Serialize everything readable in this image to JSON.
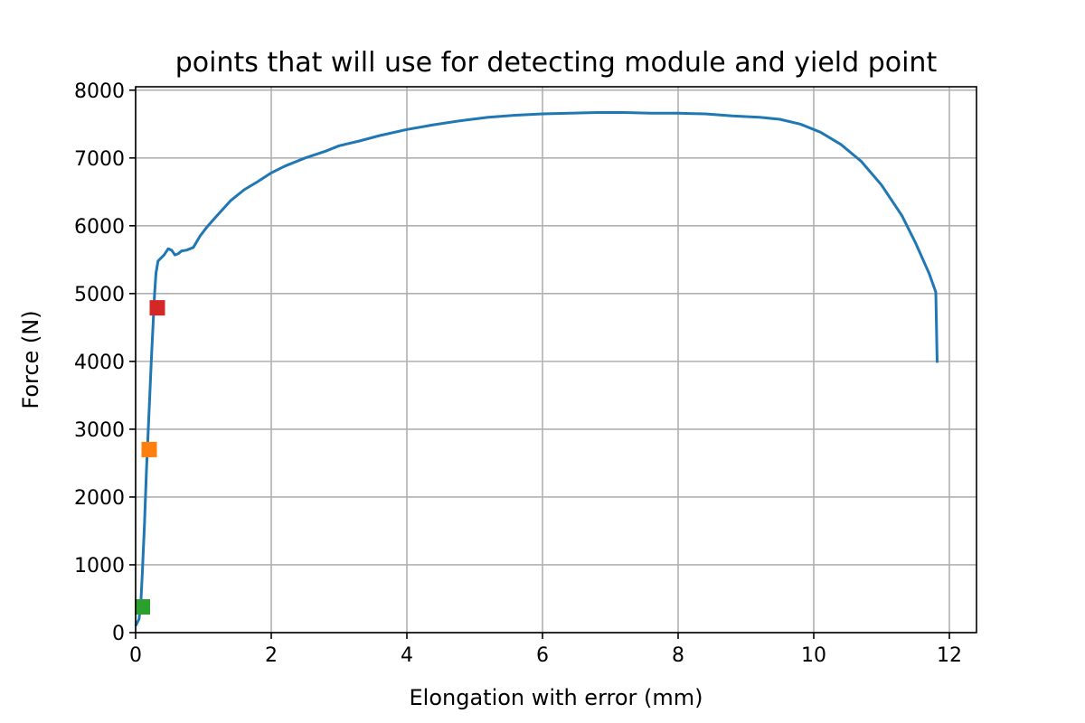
{
  "chart_data": {
    "type": "line",
    "title": "points that will use for detecting module and yield point",
    "xlabel": "Elongation with error (mm)",
    "ylabel": "Force (N)",
    "xlim": [
      0,
      12.4
    ],
    "ylim": [
      0,
      8050
    ],
    "x_ticks": [
      0,
      2,
      4,
      6,
      8,
      10,
      12
    ],
    "y_ticks": [
      0,
      1000,
      2000,
      3000,
      4000,
      5000,
      6000,
      7000,
      8000
    ],
    "grid": true,
    "series": [
      {
        "color": "#1f77b4",
        "x": [
          0,
          0.05,
          0.08,
          0.1,
          0.13,
          0.16,
          0.2,
          0.23,
          0.26,
          0.28,
          0.3,
          0.33,
          0.36,
          0.42,
          0.48,
          0.53,
          0.58,
          0.63,
          0.68,
          0.75,
          0.85,
          0.95,
          1.05,
          1.2,
          1.4,
          1.6,
          1.8,
          2.0,
          2.2,
          2.5,
          2.8,
          3.0,
          3.3,
          3.6,
          4.0,
          4.4,
          4.8,
          5.2,
          5.6,
          6.0,
          6.4,
          6.8,
          7.2,
          7.6,
          8.0,
          8.4,
          8.8,
          9.2,
          9.5,
          9.8,
          10.1,
          10.4,
          10.7,
          11.0,
          11.3,
          11.5,
          11.7,
          11.8,
          11.82
        ],
        "y": [
          100,
          200,
          500,
          900,
          1600,
          2400,
          3300,
          4000,
          4600,
          5000,
          5300,
          5480,
          5510,
          5570,
          5660,
          5640,
          5570,
          5590,
          5630,
          5640,
          5680,
          5850,
          5980,
          6150,
          6370,
          6530,
          6650,
          6780,
          6880,
          7000,
          7100,
          7180,
          7250,
          7330,
          7420,
          7490,
          7550,
          7600,
          7630,
          7650,
          7660,
          7670,
          7670,
          7660,
          7660,
          7650,
          7620,
          7600,
          7570,
          7500,
          7380,
          7200,
          6950,
          6600,
          6150,
          5750,
          5300,
          5020,
          3980
        ]
      }
    ],
    "markers": [
      {
        "x": 0.1,
        "y": 380,
        "color": "#2ca02c"
      },
      {
        "x": 0.2,
        "y": 2700,
        "color": "#ff7f0e"
      },
      {
        "x": 0.32,
        "y": 4790,
        "color": "#d62728"
      }
    ]
  }
}
